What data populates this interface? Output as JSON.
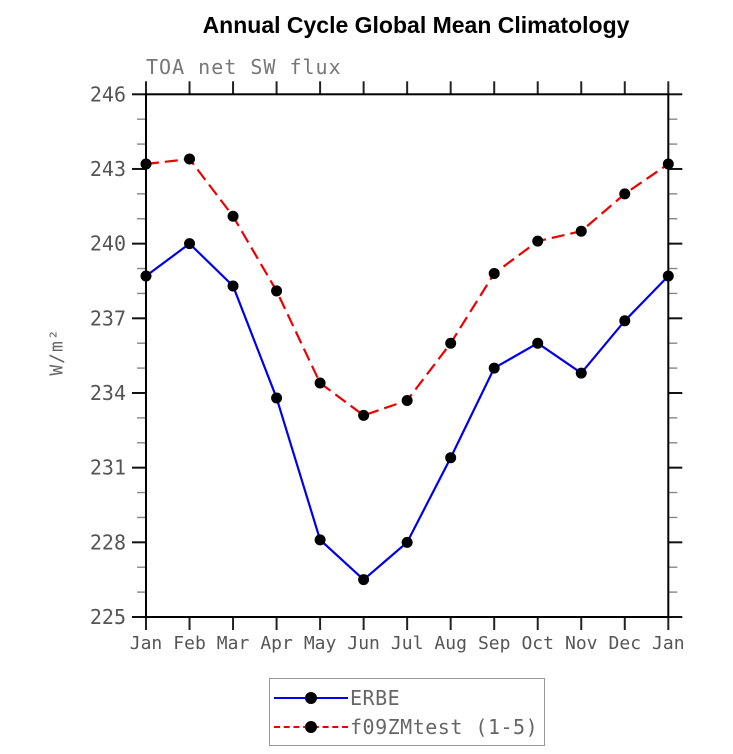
{
  "chart_data": {
    "type": "line",
    "title": "Annual Cycle Global Mean Climatology",
    "subtitle": "TOA net SW flux",
    "ylabel": "W/m²",
    "xlabel": "",
    "categories": [
      "Jan",
      "Feb",
      "Mar",
      "Apr",
      "May",
      "Jun",
      "Jul",
      "Aug",
      "Sep",
      "Oct",
      "Nov",
      "Dec",
      "Jan"
    ],
    "series": [
      {
        "name": "ERBE",
        "color": "#0000ee",
        "line_style": "solid",
        "marker": "filled-black-circle",
        "values": [
          238.7,
          240.0,
          238.3,
          233.8,
          228.1,
          226.5,
          228.0,
          231.4,
          235.0,
          236.0,
          234.8,
          236.9,
          238.7
        ]
      },
      {
        "name": "f09ZMtest (1-5)",
        "color": "#ee0000",
        "line_style": "dashed",
        "marker": "filled-black-circle",
        "values": [
          243.2,
          243.4,
          241.1,
          238.1,
          234.4,
          233.1,
          233.7,
          236.0,
          238.8,
          240.1,
          240.5,
          242.0,
          243.2
        ]
      }
    ],
    "y_axis": {
      "min": 225,
      "max": 246,
      "major_step": 3,
      "minor_step": 1,
      "tick_labels": [
        "225",
        "228",
        "231",
        "234",
        "237",
        "240",
        "243",
        "246"
      ],
      "label_color": "#555"
    },
    "x_axis": {
      "label_color": "#555"
    },
    "legend": {
      "position": "bottom-center",
      "entries": [
        "ERBE",
        "f09ZMtest (1-5)"
      ]
    },
    "grid": false,
    "frame_color": "#000000",
    "marker_color": "#000000"
  }
}
